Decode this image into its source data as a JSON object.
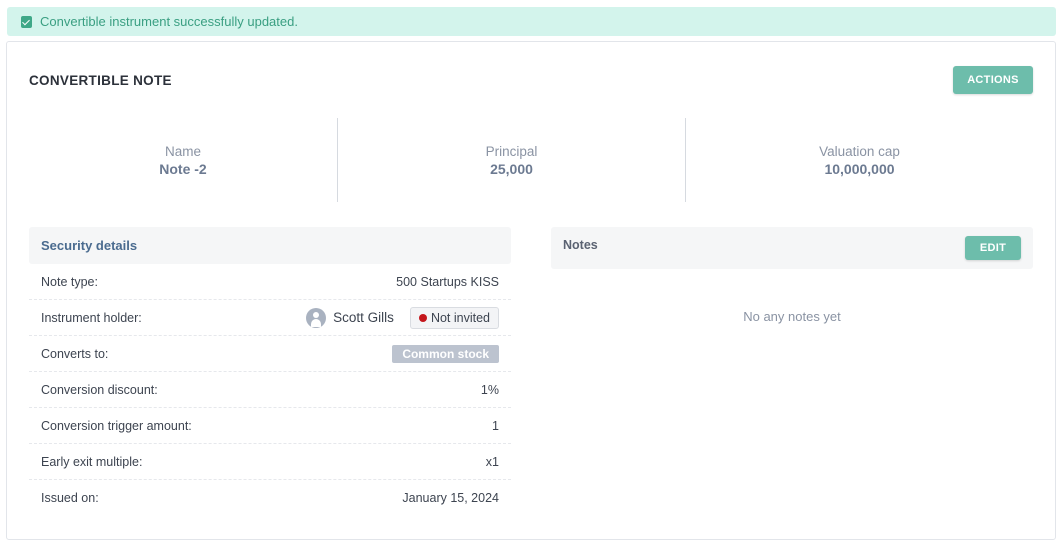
{
  "alert": {
    "message": "Convertible instrument successfully updated."
  },
  "card": {
    "title": "CONVERTIBLE NOTE",
    "actions_label": "ACTIONS"
  },
  "stats": [
    {
      "label": "Name",
      "value": "Note -2"
    },
    {
      "label": "Principal",
      "value": "25,000"
    },
    {
      "label": "Valuation cap",
      "value": "10,000,000"
    }
  ],
  "security": {
    "title": "Security details",
    "note_type": {
      "label": "Note type:",
      "value": "500 Startups KISS"
    },
    "holder": {
      "label": "Instrument holder:",
      "name": "Scott Gills",
      "status": "Not invited"
    },
    "converts_to": {
      "label": "Converts to:",
      "value": "Common stock"
    },
    "discount": {
      "label": "Conversion discount:",
      "value": "1%"
    },
    "trigger": {
      "label": "Conversion trigger amount:",
      "value": "1"
    },
    "exit_multiple": {
      "label": "Early exit multiple:",
      "value": "x1"
    },
    "issued_on": {
      "label": "Issued on:",
      "value": "January 15, 2024"
    }
  },
  "notes": {
    "title": "Notes",
    "edit_label": "EDIT",
    "empty": "No any notes yet"
  },
  "colors": {
    "accent": "#6dbdab",
    "alert_bg": "#d3f4ec",
    "alert_text": "#3a9f82",
    "not_invited_dot": "#c4161c"
  },
  "icons": {
    "alert": "check-clipboard-icon",
    "avatar": "user-avatar-icon",
    "status": "red-dot-icon"
  }
}
